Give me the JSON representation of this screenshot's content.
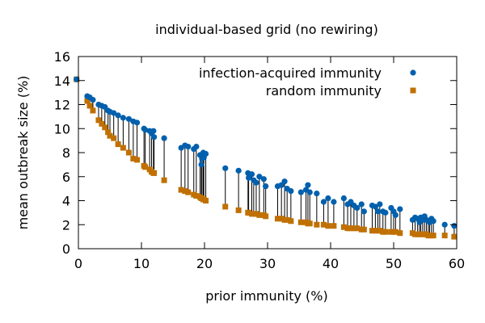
{
  "chart_data": {
    "type": "scatter",
    "title": "individual-based grid (no rewiring)",
    "xlabel": "prior immunity (%)",
    "ylabel": "mean outbreak size (%)",
    "xlim": [
      0,
      60
    ],
    "ylim": [
      0,
      16
    ],
    "xticks": [
      0,
      10,
      20,
      30,
      40,
      50,
      60
    ],
    "yticks": [
      0,
      2,
      4,
      6,
      8,
      10,
      12,
      14,
      16
    ],
    "grid": false,
    "legend_position": "top-right",
    "series": [
      {
        "name": "infection-acquired immunity",
        "color": "#0060ad",
        "marker": "circle",
        "points": [
          [
            -0.3,
            14.1
          ],
          [
            1.4,
            12.7
          ],
          [
            1.8,
            12.6
          ],
          [
            2.3,
            12.4
          ],
          [
            3.2,
            12.0
          ],
          [
            3.7,
            11.9
          ],
          [
            4.2,
            11.8
          ],
          [
            4.7,
            11.5
          ],
          [
            5.0,
            11.4
          ],
          [
            5.6,
            11.3
          ],
          [
            6.3,
            11.1
          ],
          [
            7.1,
            10.9
          ],
          [
            8.0,
            10.8
          ],
          [
            8.7,
            10.6
          ],
          [
            9.3,
            10.5
          ],
          [
            10.4,
            10.0
          ],
          [
            10.6,
            9.9
          ],
          [
            11.3,
            9.8
          ],
          [
            11.6,
            9.6
          ],
          [
            11.9,
            9.8
          ],
          [
            12.0,
            9.3
          ],
          [
            13.6,
            9.2
          ],
          [
            16.3,
            8.4
          ],
          [
            16.9,
            8.6
          ],
          [
            17.4,
            8.5
          ],
          [
            18.3,
            8.3
          ],
          [
            18.7,
            8.5
          ],
          [
            19.3,
            7.8
          ],
          [
            19.5,
            7.0
          ],
          [
            19.6,
            7.5
          ],
          [
            19.8,
            8.0
          ],
          [
            19.9,
            7.6
          ],
          [
            20.2,
            7.9
          ],
          [
            23.3,
            6.7
          ],
          [
            25.4,
            6.5
          ],
          [
            26.9,
            6.3
          ],
          [
            27.0,
            5.9
          ],
          [
            27.5,
            6.2
          ],
          [
            27.8,
            5.7
          ],
          [
            28.2,
            5.5
          ],
          [
            28.7,
            6.0
          ],
          [
            29.4,
            5.8
          ],
          [
            29.7,
            5.2
          ],
          [
            31.6,
            5.2
          ],
          [
            32.2,
            5.3
          ],
          [
            32.7,
            5.6
          ],
          [
            33.1,
            5.0
          ],
          [
            33.7,
            4.8
          ],
          [
            35.3,
            4.7
          ],
          [
            36.1,
            4.9
          ],
          [
            36.4,
            5.3
          ],
          [
            36.7,
            4.7
          ],
          [
            37.8,
            4.6
          ],
          [
            38.9,
            3.9
          ],
          [
            39.6,
            4.2
          ],
          [
            40.5,
            3.9
          ],
          [
            42.1,
            4.2
          ],
          [
            42.7,
            3.7
          ],
          [
            43.2,
            3.9
          ],
          [
            43.7,
            3.6
          ],
          [
            44.2,
            3.4
          ],
          [
            44.9,
            3.7
          ],
          [
            45.3,
            3.1
          ],
          [
            46.6,
            3.6
          ],
          [
            47.1,
            3.5
          ],
          [
            47.5,
            3.1
          ],
          [
            47.8,
            3.7
          ],
          [
            48.3,
            3.1
          ],
          [
            48.7,
            3.0
          ],
          [
            49.6,
            3.4
          ],
          [
            50.0,
            3.1
          ],
          [
            50.3,
            2.8
          ],
          [
            51.0,
            3.3
          ],
          [
            53.0,
            2.4
          ],
          [
            53.4,
            2.6
          ],
          [
            53.8,
            2.5
          ],
          [
            54.1,
            2.2
          ],
          [
            54.3,
            2.6
          ],
          [
            54.6,
            2.4
          ],
          [
            54.9,
            2.7
          ],
          [
            55.2,
            2.4
          ],
          [
            55.5,
            2.3
          ],
          [
            55.7,
            2.2
          ],
          [
            56.0,
            2.5
          ],
          [
            56.3,
            2.3
          ],
          [
            58.1,
            2.0
          ],
          [
            59.6,
            1.9
          ]
        ]
      },
      {
        "name": "random immunity",
        "color": "#c07000",
        "marker": "square",
        "points": [
          [
            -0.3,
            14.1
          ],
          [
            1.4,
            12.3
          ],
          [
            1.8,
            11.9
          ],
          [
            2.3,
            11.5
          ],
          [
            3.2,
            10.7
          ],
          [
            3.7,
            10.4
          ],
          [
            4.2,
            10.1
          ],
          [
            4.7,
            9.7
          ],
          [
            5.0,
            9.4
          ],
          [
            5.6,
            9.2
          ],
          [
            6.3,
            8.7
          ],
          [
            7.1,
            8.4
          ],
          [
            8.0,
            8.0
          ],
          [
            8.7,
            7.5
          ],
          [
            9.3,
            7.4
          ],
          [
            10.4,
            6.9
          ],
          [
            10.6,
            6.8
          ],
          [
            11.3,
            6.6
          ],
          [
            11.6,
            6.4
          ],
          [
            11.9,
            6.3
          ],
          [
            12.0,
            6.3
          ],
          [
            13.6,
            5.7
          ],
          [
            16.3,
            4.9
          ],
          [
            16.9,
            4.8
          ],
          [
            17.4,
            4.7
          ],
          [
            18.3,
            4.5
          ],
          [
            18.7,
            4.4
          ],
          [
            19.3,
            4.3
          ],
          [
            19.5,
            4.2
          ],
          [
            19.6,
            4.2
          ],
          [
            19.8,
            4.1
          ],
          [
            19.9,
            4.1
          ],
          [
            20.2,
            4.0
          ],
          [
            23.3,
            3.5
          ],
          [
            25.4,
            3.2
          ],
          [
            26.9,
            3.0
          ],
          [
            27.0,
            3.0
          ],
          [
            27.5,
            2.9
          ],
          [
            27.8,
            2.9
          ],
          [
            28.2,
            2.9
          ],
          [
            28.7,
            2.8
          ],
          [
            29.4,
            2.8
          ],
          [
            29.7,
            2.7
          ],
          [
            31.6,
            2.5
          ],
          [
            32.2,
            2.5
          ],
          [
            32.7,
            2.4
          ],
          [
            33.1,
            2.4
          ],
          [
            33.7,
            2.3
          ],
          [
            35.3,
            2.2
          ],
          [
            36.1,
            2.2
          ],
          [
            36.4,
            2.1
          ],
          [
            36.7,
            2.1
          ],
          [
            37.8,
            2.0
          ],
          [
            38.9,
            2.0
          ],
          [
            39.6,
            1.9
          ],
          [
            40.5,
            1.9
          ],
          [
            42.1,
            1.8
          ],
          [
            42.7,
            1.7
          ],
          [
            43.2,
            1.7
          ],
          [
            43.7,
            1.7
          ],
          [
            44.2,
            1.7
          ],
          [
            44.9,
            1.6
          ],
          [
            45.3,
            1.6
          ],
          [
            46.6,
            1.5
          ],
          [
            47.1,
            1.5
          ],
          [
            47.5,
            1.5
          ],
          [
            47.8,
            1.5
          ],
          [
            48.3,
            1.4
          ],
          [
            48.7,
            1.4
          ],
          [
            49.6,
            1.4
          ],
          [
            50.0,
            1.4
          ],
          [
            50.3,
            1.4
          ],
          [
            51.0,
            1.3
          ],
          [
            53.0,
            1.3
          ],
          [
            53.4,
            1.2
          ],
          [
            53.8,
            1.2
          ],
          [
            54.1,
            1.2
          ],
          [
            54.3,
            1.2
          ],
          [
            54.6,
            1.2
          ],
          [
            54.9,
            1.2
          ],
          [
            55.2,
            1.2
          ],
          [
            55.5,
            1.1
          ],
          [
            55.7,
            1.1
          ],
          [
            56.0,
            1.1
          ],
          [
            56.3,
            1.1
          ],
          [
            58.1,
            1.1
          ],
          [
            59.6,
            1.0
          ]
        ]
      }
    ],
    "connectors": "vertical black line joining each random-immunity point to the infection-acquired point at the same x"
  }
}
